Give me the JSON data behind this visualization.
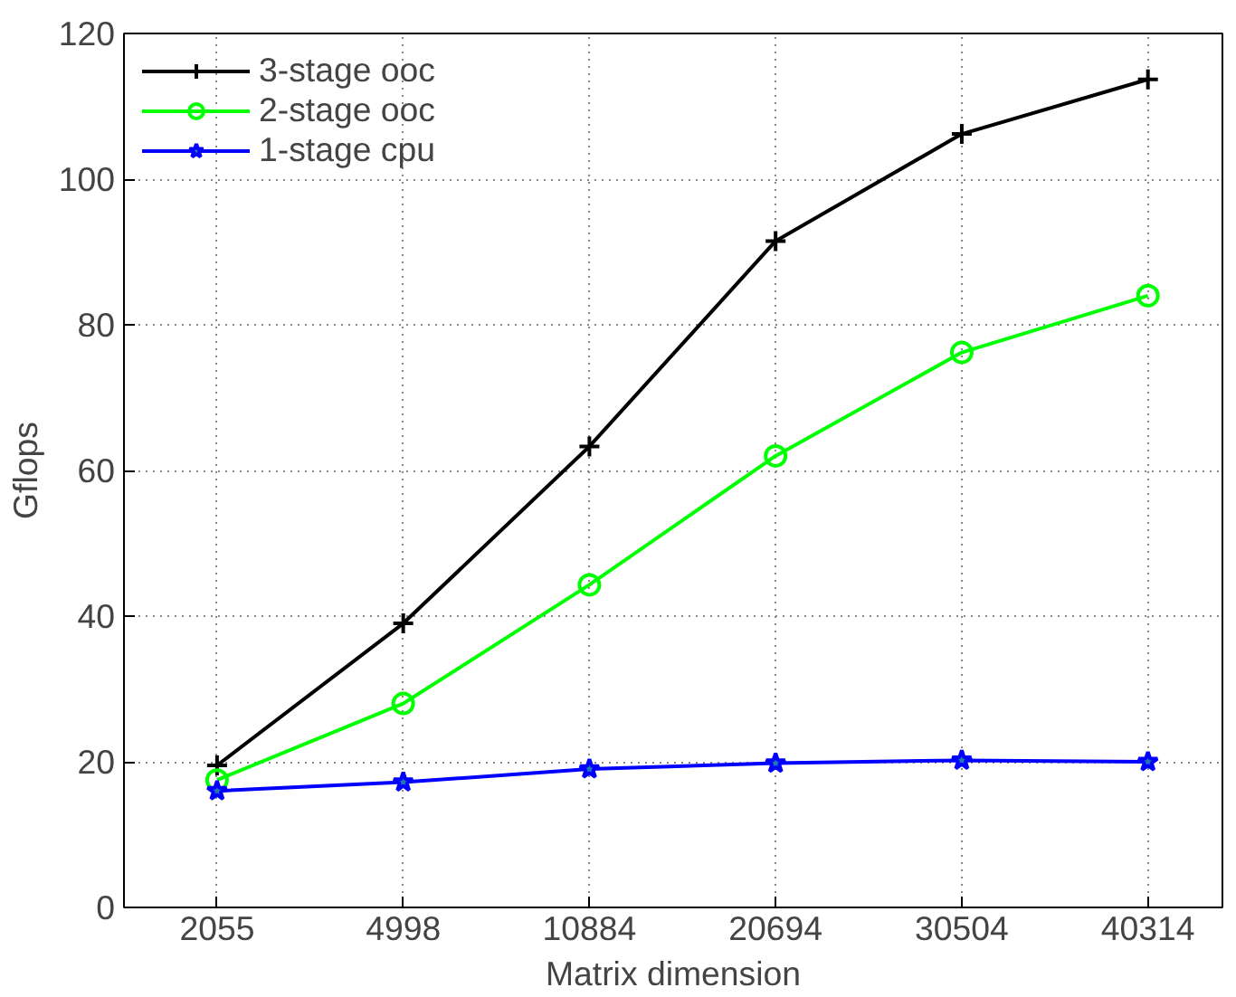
{
  "chart_data": {
    "type": "line",
    "xlabel": "Matrix dimension",
    "ylabel": "Gflops",
    "categories": [
      "2055",
      "4998",
      "10884",
      "20694",
      "30504",
      "40314"
    ],
    "ylim": [
      0,
      120
    ],
    "yticks": [
      0,
      20,
      40,
      60,
      80,
      100,
      120
    ],
    "grid": true,
    "legend": "top left",
    "line_style": "solid",
    "series": [
      {
        "name": "3-stage ooc",
        "color": "#000000",
        "marker": "cross",
        "values": [
          19.5,
          39,
          63.3,
          91.5,
          106.2,
          113.7
        ]
      },
      {
        "name": "2-stage ooc",
        "color": "#00ff00",
        "marker": "circle",
        "values": [
          17.5,
          28,
          44.3,
          62,
          76.2,
          84
        ]
      },
      {
        "name": "1-stage cpu",
        "color": "#0000ff",
        "marker": "star",
        "values": [
          16,
          17.2,
          19,
          19.8,
          20.2,
          20
        ]
      }
    ]
  }
}
